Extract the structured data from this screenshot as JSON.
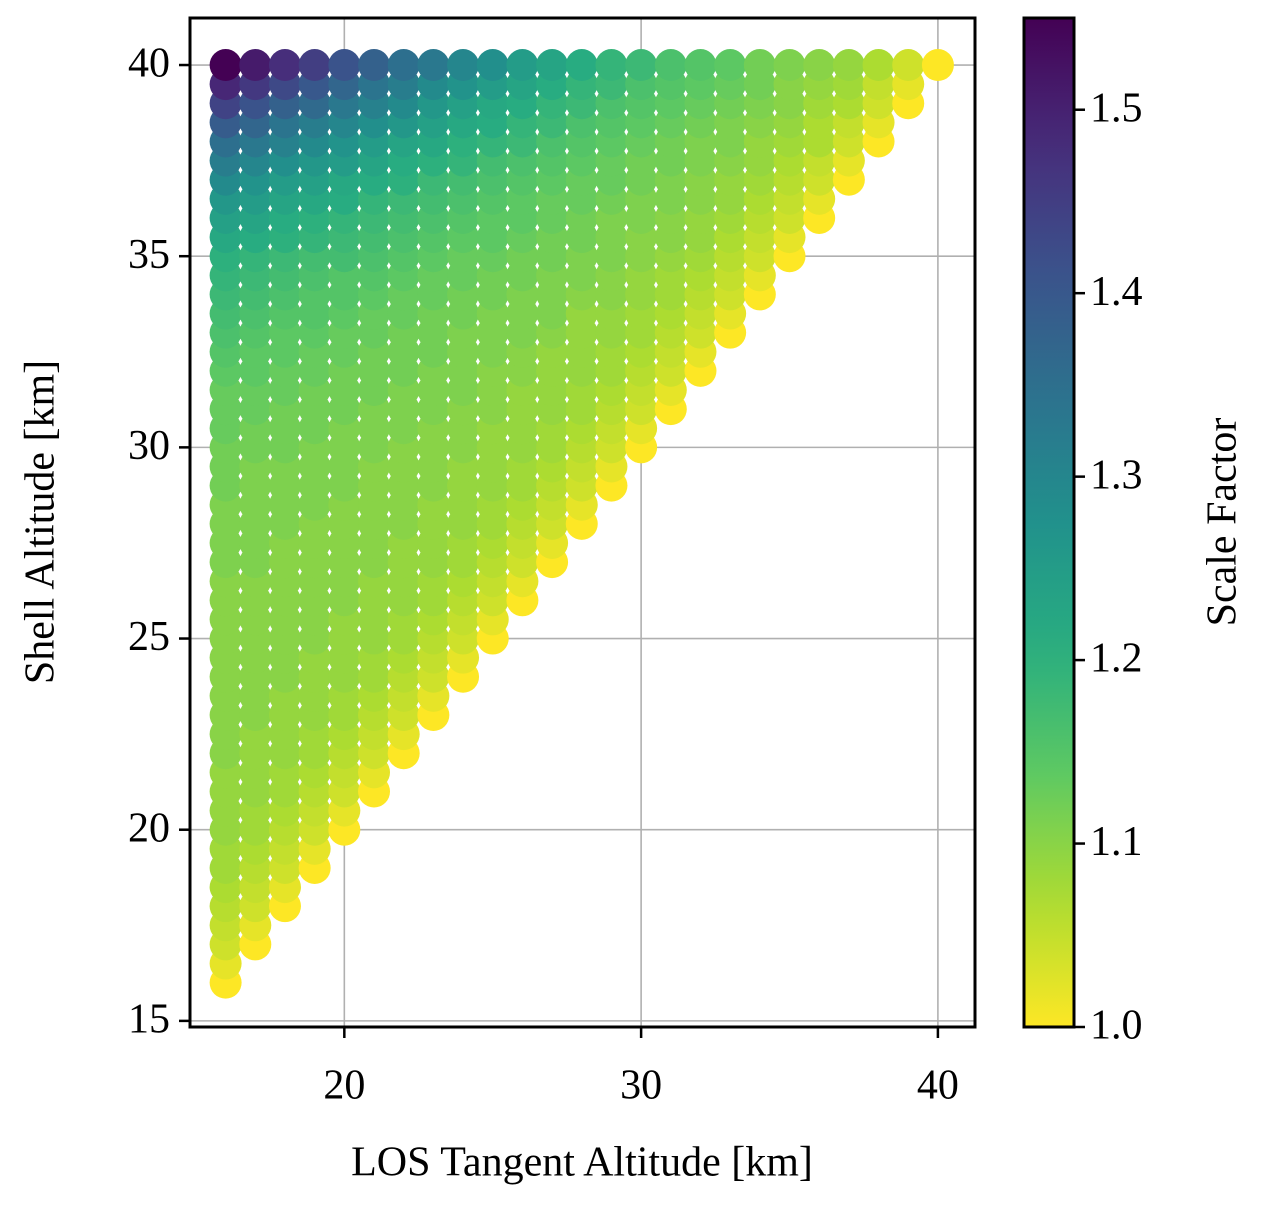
{
  "chart_data": {
    "type": "scatter",
    "xlabel": "LOS Tangent Altitude [km]",
    "ylabel": "Shell Altitude [km]",
    "x": [
      16,
      17,
      18,
      19,
      20,
      21,
      22,
      23,
      24,
      25,
      26,
      27,
      28,
      29,
      30,
      31,
      32,
      33,
      34,
      35,
      36,
      37,
      38,
      39,
      40
    ],
    "y": [
      16,
      16.5,
      17,
      17.5,
      18,
      18.5,
      19,
      19.5,
      20,
      20.5,
      21,
      21.5,
      22,
      22.5,
      23,
      23.5,
      24,
      24.5,
      25,
      25.5,
      26,
      26.5,
      27,
      27.5,
      28,
      28.5,
      29,
      29.5,
      30,
      30.5,
      31,
      31.5,
      32,
      32.5,
      33,
      33.5,
      34,
      34.5,
      35,
      35.5,
      36,
      36.5,
      37,
      37.5,
      38,
      38.5,
      39,
      39.5,
      40
    ],
    "values": [
      [
        1.0,
        null,
        null,
        null,
        null,
        null,
        null,
        null,
        null,
        null,
        null,
        null,
        null,
        null,
        null,
        null,
        null,
        null,
        null,
        null,
        null,
        null,
        null,
        null,
        null
      ],
      [
        1.02,
        null,
        null,
        null,
        null,
        null,
        null,
        null,
        null,
        null,
        null,
        null,
        null,
        null,
        null,
        null,
        null,
        null,
        null,
        null,
        null,
        null,
        null,
        null,
        null
      ],
      [
        1.04,
        1.0,
        null,
        null,
        null,
        null,
        null,
        null,
        null,
        null,
        null,
        null,
        null,
        null,
        null,
        null,
        null,
        null,
        null,
        null,
        null,
        null,
        null,
        null,
        null
      ],
      [
        1.05,
        1.02,
        null,
        null,
        null,
        null,
        null,
        null,
        null,
        null,
        null,
        null,
        null,
        null,
        null,
        null,
        null,
        null,
        null,
        null,
        null,
        null,
        null,
        null,
        null
      ],
      [
        1.06,
        1.04,
        1.0,
        null,
        null,
        null,
        null,
        null,
        null,
        null,
        null,
        null,
        null,
        null,
        null,
        null,
        null,
        null,
        null,
        null,
        null,
        null,
        null,
        null,
        null
      ],
      [
        1.07,
        1.05,
        1.02,
        null,
        null,
        null,
        null,
        null,
        null,
        null,
        null,
        null,
        null,
        null,
        null,
        null,
        null,
        null,
        null,
        null,
        null,
        null,
        null,
        null,
        null
      ],
      [
        1.08,
        1.06,
        1.04,
        1.0,
        null,
        null,
        null,
        null,
        null,
        null,
        null,
        null,
        null,
        null,
        null,
        null,
        null,
        null,
        null,
        null,
        null,
        null,
        null,
        null,
        null
      ],
      [
        1.08,
        1.07,
        1.05,
        1.02,
        null,
        null,
        null,
        null,
        null,
        null,
        null,
        null,
        null,
        null,
        null,
        null,
        null,
        null,
        null,
        null,
        null,
        null,
        null,
        null,
        null
      ],
      [
        1.09,
        1.08,
        1.06,
        1.04,
        1.0,
        null,
        null,
        null,
        null,
        null,
        null,
        null,
        null,
        null,
        null,
        null,
        null,
        null,
        null,
        null,
        null,
        null,
        null,
        null,
        null
      ],
      [
        1.09,
        1.08,
        1.07,
        1.05,
        1.02,
        null,
        null,
        null,
        null,
        null,
        null,
        null,
        null,
        null,
        null,
        null,
        null,
        null,
        null,
        null,
        null,
        null,
        null,
        null,
        null
      ],
      [
        1.09,
        1.09,
        1.08,
        1.06,
        1.04,
        1.0,
        null,
        null,
        null,
        null,
        null,
        null,
        null,
        null,
        null,
        null,
        null,
        null,
        null,
        null,
        null,
        null,
        null,
        null,
        null
      ],
      [
        1.09,
        1.09,
        1.08,
        1.07,
        1.05,
        1.02,
        null,
        null,
        null,
        null,
        null,
        null,
        null,
        null,
        null,
        null,
        null,
        null,
        null,
        null,
        null,
        null,
        null,
        null,
        null
      ],
      [
        1.1,
        1.09,
        1.09,
        1.08,
        1.06,
        1.04,
        1.0,
        null,
        null,
        null,
        null,
        null,
        null,
        null,
        null,
        null,
        null,
        null,
        null,
        null,
        null,
        null,
        null,
        null,
        null
      ],
      [
        1.1,
        1.09,
        1.09,
        1.08,
        1.07,
        1.05,
        1.02,
        null,
        null,
        null,
        null,
        null,
        null,
        null,
        null,
        null,
        null,
        null,
        null,
        null,
        null,
        null,
        null,
        null,
        null
      ],
      [
        1.1,
        1.1,
        1.09,
        1.09,
        1.08,
        1.06,
        1.04,
        1.0,
        null,
        null,
        null,
        null,
        null,
        null,
        null,
        null,
        null,
        null,
        null,
        null,
        null,
        null,
        null,
        null,
        null
      ],
      [
        1.1,
        1.1,
        1.09,
        1.09,
        1.08,
        1.07,
        1.05,
        1.02,
        null,
        null,
        null,
        null,
        null,
        null,
        null,
        null,
        null,
        null,
        null,
        null,
        null,
        null,
        null,
        null,
        null
      ],
      [
        1.1,
        1.1,
        1.1,
        1.09,
        1.09,
        1.08,
        1.06,
        1.04,
        1.0,
        null,
        null,
        null,
        null,
        null,
        null,
        null,
        null,
        null,
        null,
        null,
        null,
        null,
        null,
        null,
        null
      ],
      [
        1.1,
        1.1,
        1.1,
        1.09,
        1.09,
        1.08,
        1.07,
        1.05,
        1.02,
        null,
        null,
        null,
        null,
        null,
        null,
        null,
        null,
        null,
        null,
        null,
        null,
        null,
        null,
        null,
        null
      ],
      [
        1.1,
        1.1,
        1.1,
        1.1,
        1.09,
        1.09,
        1.08,
        1.06,
        1.04,
        1.0,
        null,
        null,
        null,
        null,
        null,
        null,
        null,
        null,
        null,
        null,
        null,
        null,
        null,
        null,
        null
      ],
      [
        1.1,
        1.1,
        1.1,
        1.1,
        1.09,
        1.09,
        1.08,
        1.07,
        1.05,
        1.02,
        null,
        null,
        null,
        null,
        null,
        null,
        null,
        null,
        null,
        null,
        null,
        null,
        null,
        null,
        null
      ],
      [
        1.1,
        1.1,
        1.1,
        1.1,
        1.1,
        1.09,
        1.09,
        1.08,
        1.06,
        1.04,
        1.0,
        null,
        null,
        null,
        null,
        null,
        null,
        null,
        null,
        null,
        null,
        null,
        null,
        null,
        null
      ],
      [
        1.1,
        1.1,
        1.1,
        1.1,
        1.1,
        1.09,
        1.09,
        1.08,
        1.07,
        1.05,
        1.02,
        null,
        null,
        null,
        null,
        null,
        null,
        null,
        null,
        null,
        null,
        null,
        null,
        null,
        null
      ],
      [
        1.11,
        1.11,
        1.1,
        1.1,
        1.1,
        1.1,
        1.09,
        1.09,
        1.08,
        1.06,
        1.04,
        1.0,
        null,
        null,
        null,
        null,
        null,
        null,
        null,
        null,
        null,
        null,
        null,
        null,
        null
      ],
      [
        1.11,
        1.11,
        1.1,
        1.1,
        1.1,
        1.1,
        1.09,
        1.09,
        1.08,
        1.07,
        1.05,
        1.02,
        null,
        null,
        null,
        null,
        null,
        null,
        null,
        null,
        null,
        null,
        null,
        null,
        null
      ],
      [
        1.11,
        1.11,
        1.11,
        1.1,
        1.1,
        1.1,
        1.1,
        1.09,
        1.09,
        1.08,
        1.06,
        1.04,
        1.0,
        null,
        null,
        null,
        null,
        null,
        null,
        null,
        null,
        null,
        null,
        null,
        null
      ],
      [
        1.11,
        1.11,
        1.11,
        1.11,
        1.1,
        1.1,
        1.1,
        1.09,
        1.09,
        1.08,
        1.07,
        1.05,
        1.02,
        null,
        null,
        null,
        null,
        null,
        null,
        null,
        null,
        null,
        null,
        null,
        null
      ],
      [
        1.12,
        1.11,
        1.11,
        1.11,
        1.11,
        1.1,
        1.1,
        1.1,
        1.09,
        1.09,
        1.08,
        1.06,
        1.04,
        1.0,
        null,
        null,
        null,
        null,
        null,
        null,
        null,
        null,
        null,
        null,
        null
      ],
      [
        1.12,
        1.11,
        1.11,
        1.11,
        1.11,
        1.1,
        1.1,
        1.1,
        1.09,
        1.09,
        1.08,
        1.07,
        1.05,
        1.02,
        null,
        null,
        null,
        null,
        null,
        null,
        null,
        null,
        null,
        null,
        null
      ],
      [
        1.12,
        1.12,
        1.12,
        1.11,
        1.11,
        1.11,
        1.1,
        1.1,
        1.1,
        1.09,
        1.09,
        1.08,
        1.06,
        1.04,
        1.0,
        null,
        null,
        null,
        null,
        null,
        null,
        null,
        null,
        null,
        null
      ],
      [
        1.13,
        1.12,
        1.12,
        1.12,
        1.11,
        1.11,
        1.11,
        1.1,
        1.1,
        1.09,
        1.09,
        1.08,
        1.07,
        1.05,
        1.02,
        null,
        null,
        null,
        null,
        null,
        null,
        null,
        null,
        null,
        null
      ],
      [
        1.13,
        1.13,
        1.12,
        1.12,
        1.12,
        1.11,
        1.11,
        1.11,
        1.1,
        1.1,
        1.09,
        1.09,
        1.08,
        1.06,
        1.04,
        1.0,
        null,
        null,
        null,
        null,
        null,
        null,
        null,
        null,
        null
      ],
      [
        1.13,
        1.13,
        1.13,
        1.12,
        1.12,
        1.12,
        1.11,
        1.11,
        1.11,
        1.1,
        1.09,
        1.09,
        1.08,
        1.07,
        1.05,
        1.02,
        null,
        null,
        null,
        null,
        null,
        null,
        null,
        null,
        null
      ],
      [
        1.14,
        1.14,
        1.13,
        1.13,
        1.12,
        1.12,
        1.12,
        1.11,
        1.11,
        1.1,
        1.1,
        1.09,
        1.09,
        1.08,
        1.06,
        1.04,
        1.0,
        null,
        null,
        null,
        null,
        null,
        null,
        null,
        null
      ],
      [
        1.15,
        1.14,
        1.14,
        1.13,
        1.13,
        1.12,
        1.12,
        1.12,
        1.11,
        1.11,
        1.1,
        1.09,
        1.09,
        1.08,
        1.07,
        1.05,
        1.02,
        null,
        null,
        null,
        null,
        null,
        null,
        null,
        null
      ],
      [
        1.16,
        1.15,
        1.14,
        1.14,
        1.13,
        1.13,
        1.12,
        1.12,
        1.11,
        1.11,
        1.11,
        1.1,
        1.09,
        1.09,
        1.08,
        1.06,
        1.04,
        1.0,
        null,
        null,
        null,
        null,
        null,
        null,
        null
      ],
      [
        1.17,
        1.16,
        1.15,
        1.15,
        1.14,
        1.13,
        1.13,
        1.12,
        1.12,
        1.11,
        1.11,
        1.11,
        1.09,
        1.09,
        1.08,
        1.07,
        1.05,
        1.02,
        null,
        null,
        null,
        null,
        null,
        null,
        null
      ],
      [
        1.18,
        1.17,
        1.16,
        1.15,
        1.15,
        1.14,
        1.13,
        1.13,
        1.12,
        1.12,
        1.11,
        1.11,
        1.1,
        1.1,
        1.09,
        1.08,
        1.06,
        1.04,
        1.0,
        null,
        null,
        null,
        null,
        null,
        null
      ],
      [
        1.19,
        1.18,
        1.17,
        1.16,
        1.15,
        1.15,
        1.14,
        1.13,
        1.13,
        1.12,
        1.12,
        1.11,
        1.11,
        1.1,
        1.09,
        1.08,
        1.07,
        1.05,
        1.02,
        null,
        null,
        null,
        null,
        null,
        null
      ],
      [
        1.2,
        1.19,
        1.18,
        1.17,
        1.17,
        1.16,
        1.15,
        1.14,
        1.13,
        1.13,
        1.12,
        1.12,
        1.11,
        1.11,
        1.1,
        1.09,
        1.08,
        1.06,
        1.04,
        1.0,
        null,
        null,
        null,
        null,
        null
      ],
      [
        1.22,
        1.21,
        1.2,
        1.19,
        1.18,
        1.17,
        1.16,
        1.15,
        1.14,
        1.14,
        1.13,
        1.12,
        1.12,
        1.11,
        1.1,
        1.1,
        1.09,
        1.07,
        1.05,
        1.02,
        null,
        null,
        null,
        null,
        null
      ],
      [
        1.24,
        1.23,
        1.21,
        1.2,
        1.19,
        1.18,
        1.17,
        1.16,
        1.15,
        1.14,
        1.14,
        1.13,
        1.12,
        1.11,
        1.11,
        1.1,
        1.09,
        1.08,
        1.06,
        1.04,
        1.0,
        null,
        null,
        null,
        null
      ],
      [
        1.26,
        1.25,
        1.23,
        1.22,
        1.21,
        1.19,
        1.18,
        1.17,
        1.16,
        1.15,
        1.14,
        1.13,
        1.13,
        1.12,
        1.11,
        1.11,
        1.1,
        1.09,
        1.07,
        1.05,
        1.02,
        null,
        null,
        null,
        null
      ],
      [
        1.29,
        1.27,
        1.25,
        1.24,
        1.22,
        1.21,
        1.2,
        1.18,
        1.17,
        1.16,
        1.15,
        1.14,
        1.13,
        1.13,
        1.12,
        1.11,
        1.1,
        1.09,
        1.08,
        1.06,
        1.04,
        1.0,
        null,
        null,
        null
      ],
      [
        1.32,
        1.3,
        1.28,
        1.26,
        1.25,
        1.23,
        1.21,
        1.2,
        1.19,
        1.17,
        1.16,
        1.15,
        1.14,
        1.13,
        1.12,
        1.12,
        1.11,
        1.1,
        1.09,
        1.07,
        1.05,
        1.02,
        null,
        null,
        null
      ],
      [
        1.35,
        1.33,
        1.31,
        1.29,
        1.27,
        1.25,
        1.23,
        1.22,
        1.2,
        1.19,
        1.18,
        1.16,
        1.15,
        1.14,
        1.13,
        1.12,
        1.11,
        1.11,
        1.09,
        1.08,
        1.07,
        1.04,
        1.0,
        null,
        null
      ],
      [
        1.39,
        1.37,
        1.34,
        1.32,
        1.3,
        1.28,
        1.26,
        1.24,
        1.22,
        1.21,
        1.19,
        1.18,
        1.16,
        1.15,
        1.14,
        1.13,
        1.12,
        1.11,
        1.1,
        1.09,
        1.07,
        1.05,
        1.02,
        null,
        null
      ],
      [
        1.44,
        1.41,
        1.38,
        1.36,
        1.33,
        1.31,
        1.29,
        1.26,
        1.24,
        1.22,
        1.21,
        1.19,
        1.18,
        1.16,
        1.15,
        1.14,
        1.13,
        1.12,
        1.11,
        1.1,
        1.08,
        1.07,
        1.04,
        1.0,
        null
      ],
      [
        1.49,
        1.46,
        1.43,
        1.4,
        1.37,
        1.34,
        1.32,
        1.29,
        1.27,
        1.25,
        1.23,
        1.21,
        1.19,
        1.18,
        1.16,
        1.15,
        1.14,
        1.13,
        1.12,
        1.1,
        1.09,
        1.08,
        1.05,
        1.02,
        null
      ],
      [
        1.55,
        1.51,
        1.48,
        1.45,
        1.41,
        1.38,
        1.35,
        1.33,
        1.3,
        1.28,
        1.25,
        1.23,
        1.21,
        1.19,
        1.18,
        1.16,
        1.15,
        1.14,
        1.12,
        1.11,
        1.1,
        1.09,
        1.07,
        1.04,
        1.0
      ]
    ],
    "xlim": [
      14.8,
      41.25
    ],
    "xticks": [
      20,
      30,
      40
    ],
    "ylim": [
      14.84,
      41.23
    ],
    "yticks": [
      15,
      20,
      25,
      30,
      35,
      40
    ],
    "grid": true,
    "colorbar": {
      "label": "Scale Factor",
      "colormap": "viridis_r",
      "lim": [
        1.0,
        1.55
      ],
      "ticks": [
        {
          "value": 1.0,
          "label": "1.0"
        },
        1.1,
        1.2,
        1.3,
        1.4,
        1.5
      ]
    }
  }
}
